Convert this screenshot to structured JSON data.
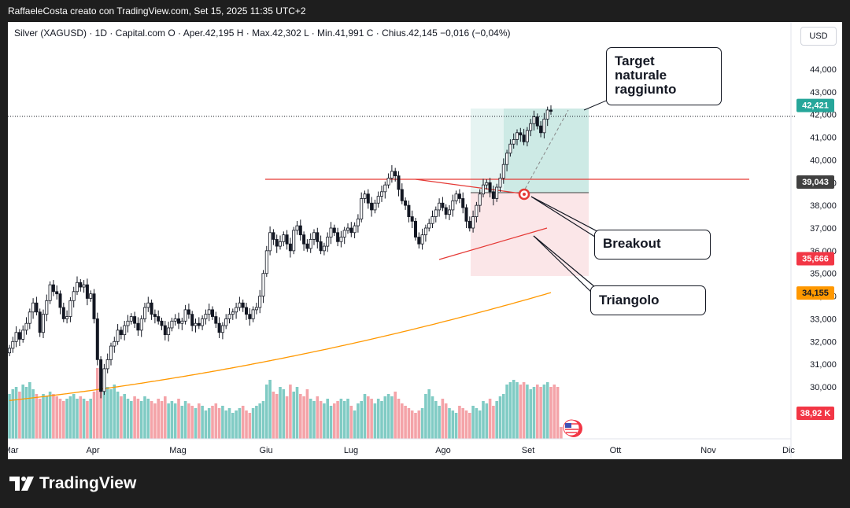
{
  "header": {
    "publisher": "RaffaeleCosta creato con TradingView.com, Set 15, 2025 11:35 UTC+2"
  },
  "legend": {
    "text": "Silver (XAGUSD) · 1D · Capital.com  O · Aper.42,195  H · Max.42,302  L · Min.41,991  C · Chius.42,145  −0,016 (−0,04%)"
  },
  "currency_button": "USD",
  "annotations": {
    "target": [
      "Target",
      "naturale",
      "raggiunto"
    ],
    "breakout": "Breakout",
    "triangle": "Triangolo"
  },
  "footer": {
    "brand": "TradingView"
  },
  "chart_data": {
    "type": "candlestick",
    "title": "",
    "xlabel": "",
    "ylabel": "",
    "ylim": [
      29500,
      45500
    ],
    "x_tick_labels": [
      "Mar",
      "Apr",
      "Mag",
      "Giu",
      "Lug",
      "Ago",
      "Set",
      "Ott",
      "Nov",
      "Dic"
    ],
    "y_tick_labels": [
      {
        "value": 30000,
        "label": "30,000"
      },
      {
        "value": 31000,
        "label": "31,000"
      },
      {
        "value": 32000,
        "label": "32,000"
      },
      {
        "value": 33000,
        "label": "33,000"
      },
      {
        "value": 34000,
        "label": "34,000"
      },
      {
        "value": 35000,
        "label": "35,000"
      },
      {
        "value": 36000,
        "label": "36,000"
      },
      {
        "value": 37000,
        "label": "37,000"
      },
      {
        "value": 38000,
        "label": "38,000"
      },
      {
        "value": 39000,
        "label": "39,000"
      },
      {
        "value": 40000,
        "label": "40,000"
      },
      {
        "value": 41000,
        "label": "41,000"
      },
      {
        "value": 42000,
        "label": "42,000"
      },
      {
        "value": 43000,
        "label": "43,000"
      },
      {
        "value": 44000,
        "label": "44,000"
      }
    ],
    "price_badges": [
      {
        "value": 42421,
        "label": "42,421",
        "color": "#26a69a",
        "text_color": "#ffffff"
      },
      {
        "value": 39043,
        "label": "39,043",
        "color": "#404040",
        "text_color": "#ffffff"
      },
      {
        "value": 35666,
        "label": "35,666",
        "color": "#f23645",
        "text_color": "#ffffff"
      },
      {
        "value": 34155,
        "label": "34,155",
        "color": "#ff9800",
        "text_color": "#131722"
      }
    ],
    "volume_badge": {
      "label": "38,92 K",
      "color": "#f23645"
    },
    "closes": [
      31700,
      32000,
      32400,
      32100,
      32500,
      32800,
      33300,
      33700,
      33300,
      32400,
      33200,
      33800,
      34500,
      34200,
      34100,
      33500,
      33000,
      33100,
      33800,
      34200,
      34600,
      34400,
      34500,
      33900,
      34100,
      33000,
      31200,
      29800,
      30800,
      31200,
      31800,
      32000,
      32500,
      32300,
      32700,
      32900,
      33100,
      32800,
      32500,
      33000,
      33500,
      33700,
      33200,
      33100,
      32900,
      32700,
      32300,
      32600,
      32900,
      33000,
      32800,
      32900,
      33400,
      33200,
      32700,
      32800,
      32700,
      33000,
      33200,
      33400,
      33100,
      32800,
      32400,
      32700,
      33000,
      33200,
      33300,
      33500,
      33700,
      33500,
      33200,
      33000,
      33400,
      33500,
      34000,
      35000,
      36000,
      36800,
      36500,
      36200,
      36400,
      36700,
      36300,
      36000,
      36900,
      37100,
      36700,
      36300,
      36100,
      36500,
      36800,
      36400,
      36000,
      36200,
      36600,
      37000,
      36800,
      36400,
      36600,
      36900,
      37000,
      36800,
      37100,
      37400,
      38300,
      38500,
      38100,
      37800,
      38100,
      38400,
      38600,
      38900,
      39200,
      39500,
      39300,
      38700,
      38200,
      38000,
      37500,
      37300,
      36600,
      36300,
      36700,
      37000,
      37200,
      37500,
      37800,
      38100,
      37900,
      37600,
      37800,
      38200,
      38500,
      38300,
      37900,
      37300,
      37000,
      37500,
      38000,
      38500,
      38900,
      39000,
      38600,
      38300,
      38800,
      39200,
      39800,
      40300,
      40700,
      40900,
      41200,
      41100,
      40800,
      41300,
      41600,
      41900,
      41500,
      41200,
      41800,
      42200,
      42145
    ],
    "volume": [
      19,
      21,
      22,
      20,
      23,
      22,
      24,
      21,
      19,
      17,
      19,
      18,
      20,
      19,
      18,
      17,
      16,
      17,
      18,
      19,
      17,
      18,
      17,
      16,
      17,
      20,
      30,
      26,
      24,
      22,
      21,
      23,
      20,
      18,
      19,
      17,
      16,
      18,
      17,
      16,
      18,
      17,
      16,
      15,
      17,
      16,
      18,
      15,
      16,
      15,
      17,
      14,
      16,
      15,
      14,
      13,
      15,
      14,
      12,
      13,
      14,
      15,
      13,
      14,
      12,
      13,
      11,
      12,
      13,
      14,
      12,
      11,
      13,
      14,
      15,
      16,
      23,
      25,
      20,
      19,
      22,
      21,
      18,
      23,
      20,
      22,
      19,
      18,
      21,
      17,
      16,
      18,
      16,
      15,
      17,
      14,
      15,
      16,
      17,
      16,
      17,
      14,
      12,
      15,
      16,
      19,
      18,
      17,
      15,
      17,
      16,
      18,
      19,
      18,
      20,
      17,
      15,
      14,
      13,
      12,
      11,
      12,
      13,
      19,
      21,
      18,
      16,
      14,
      17,
      15,
      13,
      12,
      11,
      14,
      13,
      12,
      11,
      14,
      13,
      12,
      16,
      15,
      17,
      14,
      16,
      18,
      19,
      23,
      24,
      25,
      24,
      23,
      24,
      23,
      21,
      22,
      23,
      22,
      23,
      24,
      22,
      23,
      22,
      5
    ]
  }
}
